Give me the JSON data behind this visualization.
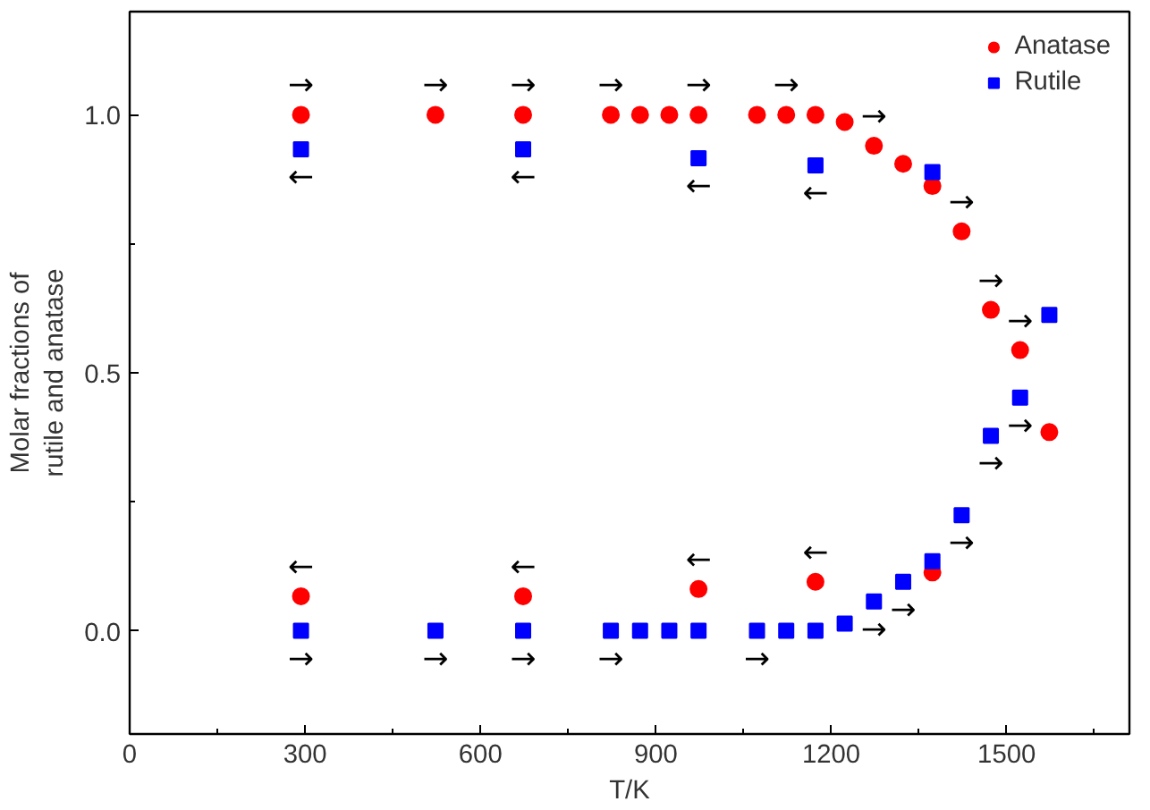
{
  "chart_data": {
    "type": "scatter",
    "xlabel": "T/K",
    "ylabel": "Molar fractions of\nrutile and anatase",
    "xlim": [
      0,
      1710
    ],
    "ylim": [
      -0.2,
      1.2
    ],
    "xticks": [
      0,
      {
        "value": 150,
        "label": null
      },
      300,
      {
        "value": 450,
        "label": null
      },
      600,
      {
        "value": 750,
        "label": null
      },
      900,
      {
        "value": 1050,
        "label": null
      },
      1200,
      {
        "value": 1350,
        "label": null
      },
      1500,
      {
        "value": 1650,
        "label": null
      }
    ],
    "yticks": [
      {
        "value": 0,
        "label": "0.0"
      },
      {
        "value": 0.25,
        "label": null
      },
      0.5,
      {
        "value": 0.75,
        "label": null
      },
      {
        "value": 1,
        "label": "1.0"
      }
    ],
    "grid": false,
    "legend": "top right",
    "series": [
      {
        "name": "Anatase",
        "color": "#ff0000",
        "marker": "circle",
        "x": [
          293,
          523,
          673,
          823,
          873,
          923,
          973,
          1073,
          1123,
          1173,
          1223,
          1273,
          1323,
          1373,
          1423,
          1473,
          1523,
          1573,
          293,
          673,
          973,
          1173,
          1373
        ],
        "values": [
          1.0,
          1.0,
          1.0,
          1.0,
          1.0,
          1.0,
          1.0,
          1.0,
          1.0,
          1.0,
          0.986,
          0.94,
          0.905,
          0.862,
          0.774,
          0.622,
          0.544,
          0.385,
          0.067,
          0.067,
          0.081,
          0.095,
          0.113
        ]
      },
      {
        "name": "Rutile",
        "color": "#0000ff",
        "marker": "square",
        "x": [
          293,
          523,
          673,
          823,
          873,
          923,
          973,
          1073,
          1123,
          1173,
          1223,
          1273,
          1323,
          1373,
          1423,
          1473,
          1523,
          1573,
          293,
          673,
          973,
          1173,
          1373
        ],
        "values": [
          0,
          0,
          0,
          0,
          0,
          0,
          0,
          0,
          0,
          0,
          0.014,
          0.057,
          0.095,
          0.135,
          0.224,
          0.378,
          0.452,
          0.612,
          0.933,
          0.933,
          0.916,
          0.902,
          0.889
        ]
      }
    ],
    "annotations": [
      {
        "text": "→",
        "x": 293,
        "y": 1.0
      },
      {
        "text": "→",
        "x": 523,
        "y": 1.0
      },
      {
        "text": "→",
        "x": 673,
        "y": 1.0
      },
      {
        "text": "→",
        "x": 823,
        "y": 1.0
      },
      {
        "text": "→",
        "x": 973,
        "y": 1.0
      },
      {
        "text": "→",
        "x": 1123,
        "y": 1.0
      },
      {
        "text": "→",
        "x": 1273,
        "y": 0.94
      },
      {
        "text": "→",
        "x": 1423,
        "y": 0.774
      },
      {
        "text": "→",
        "x": 1473,
        "y": 0.622
      },
      {
        "text": "→",
        "x": 1523,
        "y": 0.544
      },
      {
        "text": "←",
        "x": 293,
        "y": 0.933
      },
      {
        "text": "←",
        "x": 673,
        "y": 0.933
      },
      {
        "text": "←",
        "x": 973,
        "y": 0.916
      },
      {
        "text": "←",
        "x": 1173,
        "y": 0.902
      },
      {
        "text": "←",
        "x": 293,
        "y": 0.067
      },
      {
        "text": "←",
        "x": 673,
        "y": 0.067
      },
      {
        "text": "←",
        "x": 973,
        "y": 0.081
      },
      {
        "text": "←",
        "x": 1173,
        "y": 0.095
      },
      {
        "text": "→",
        "x": 293,
        "y": 0
      },
      {
        "text": "→",
        "x": 523,
        "y": 0
      },
      {
        "text": "→",
        "x": 673,
        "y": 0
      },
      {
        "text": "→",
        "x": 823,
        "y": 0
      },
      {
        "text": "→",
        "x": 1073,
        "y": 0
      },
      {
        "text": "→",
        "x": 1273,
        "y": 0.057
      },
      {
        "text": "→",
        "x": 1323,
        "y": 0.095
      },
      {
        "text": "→",
        "x": 1423,
        "y": 0.224
      },
      {
        "text": "→",
        "x": 1473,
        "y": 0.378
      },
      {
        "text": "→",
        "x": 1523,
        "y": 0.452
      }
    ]
  }
}
